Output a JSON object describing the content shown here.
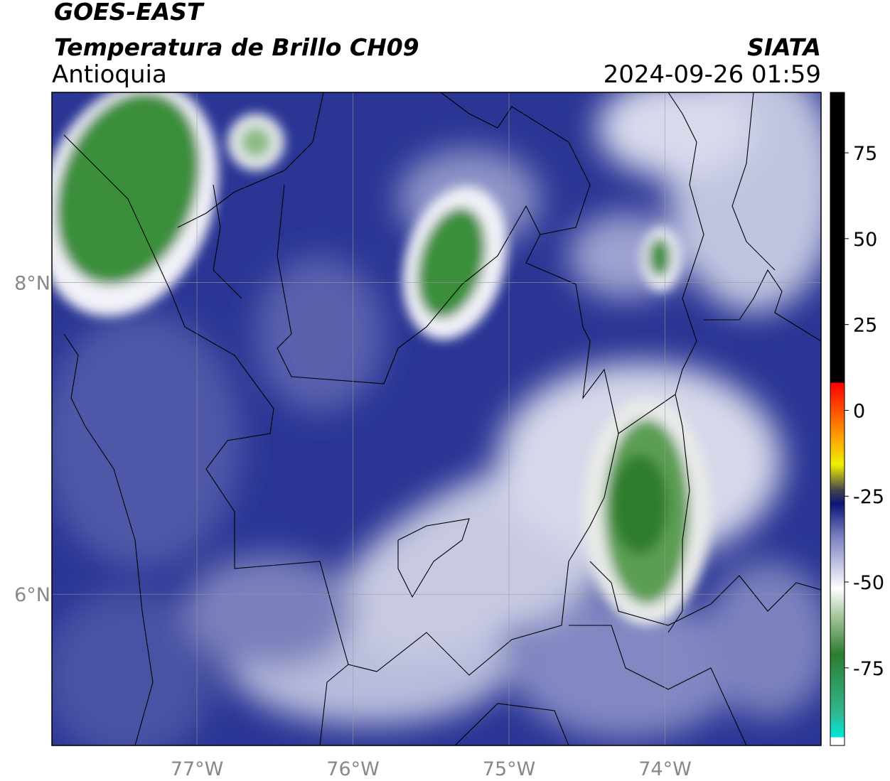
{
  "header": {
    "title": "GOES-EAST",
    "subtitle": "Temperatura de Brillo CH09",
    "region": "Antioquia",
    "source": "SIATA",
    "timestamp": "2024-09-26 01:59"
  },
  "map": {
    "lonlim": [
      -77.93,
      -73.0
    ],
    "latlim": [
      5.03,
      9.22
    ],
    "lon_ticks": [
      {
        "value": -77,
        "label": "77°W"
      },
      {
        "value": -76,
        "label": "76°W"
      },
      {
        "value": -75,
        "label": "75°W"
      },
      {
        "value": -74,
        "label": "74°W"
      }
    ],
    "lat_ticks": [
      {
        "value": 8,
        "label": "8°N"
      },
      {
        "value": 6,
        "label": "6°N"
      }
    ]
  },
  "colorbar": {
    "lim": [
      -97.6,
      92.6
    ],
    "ticks": [
      75,
      50,
      25,
      0,
      -25,
      -50,
      -75
    ]
  }
}
